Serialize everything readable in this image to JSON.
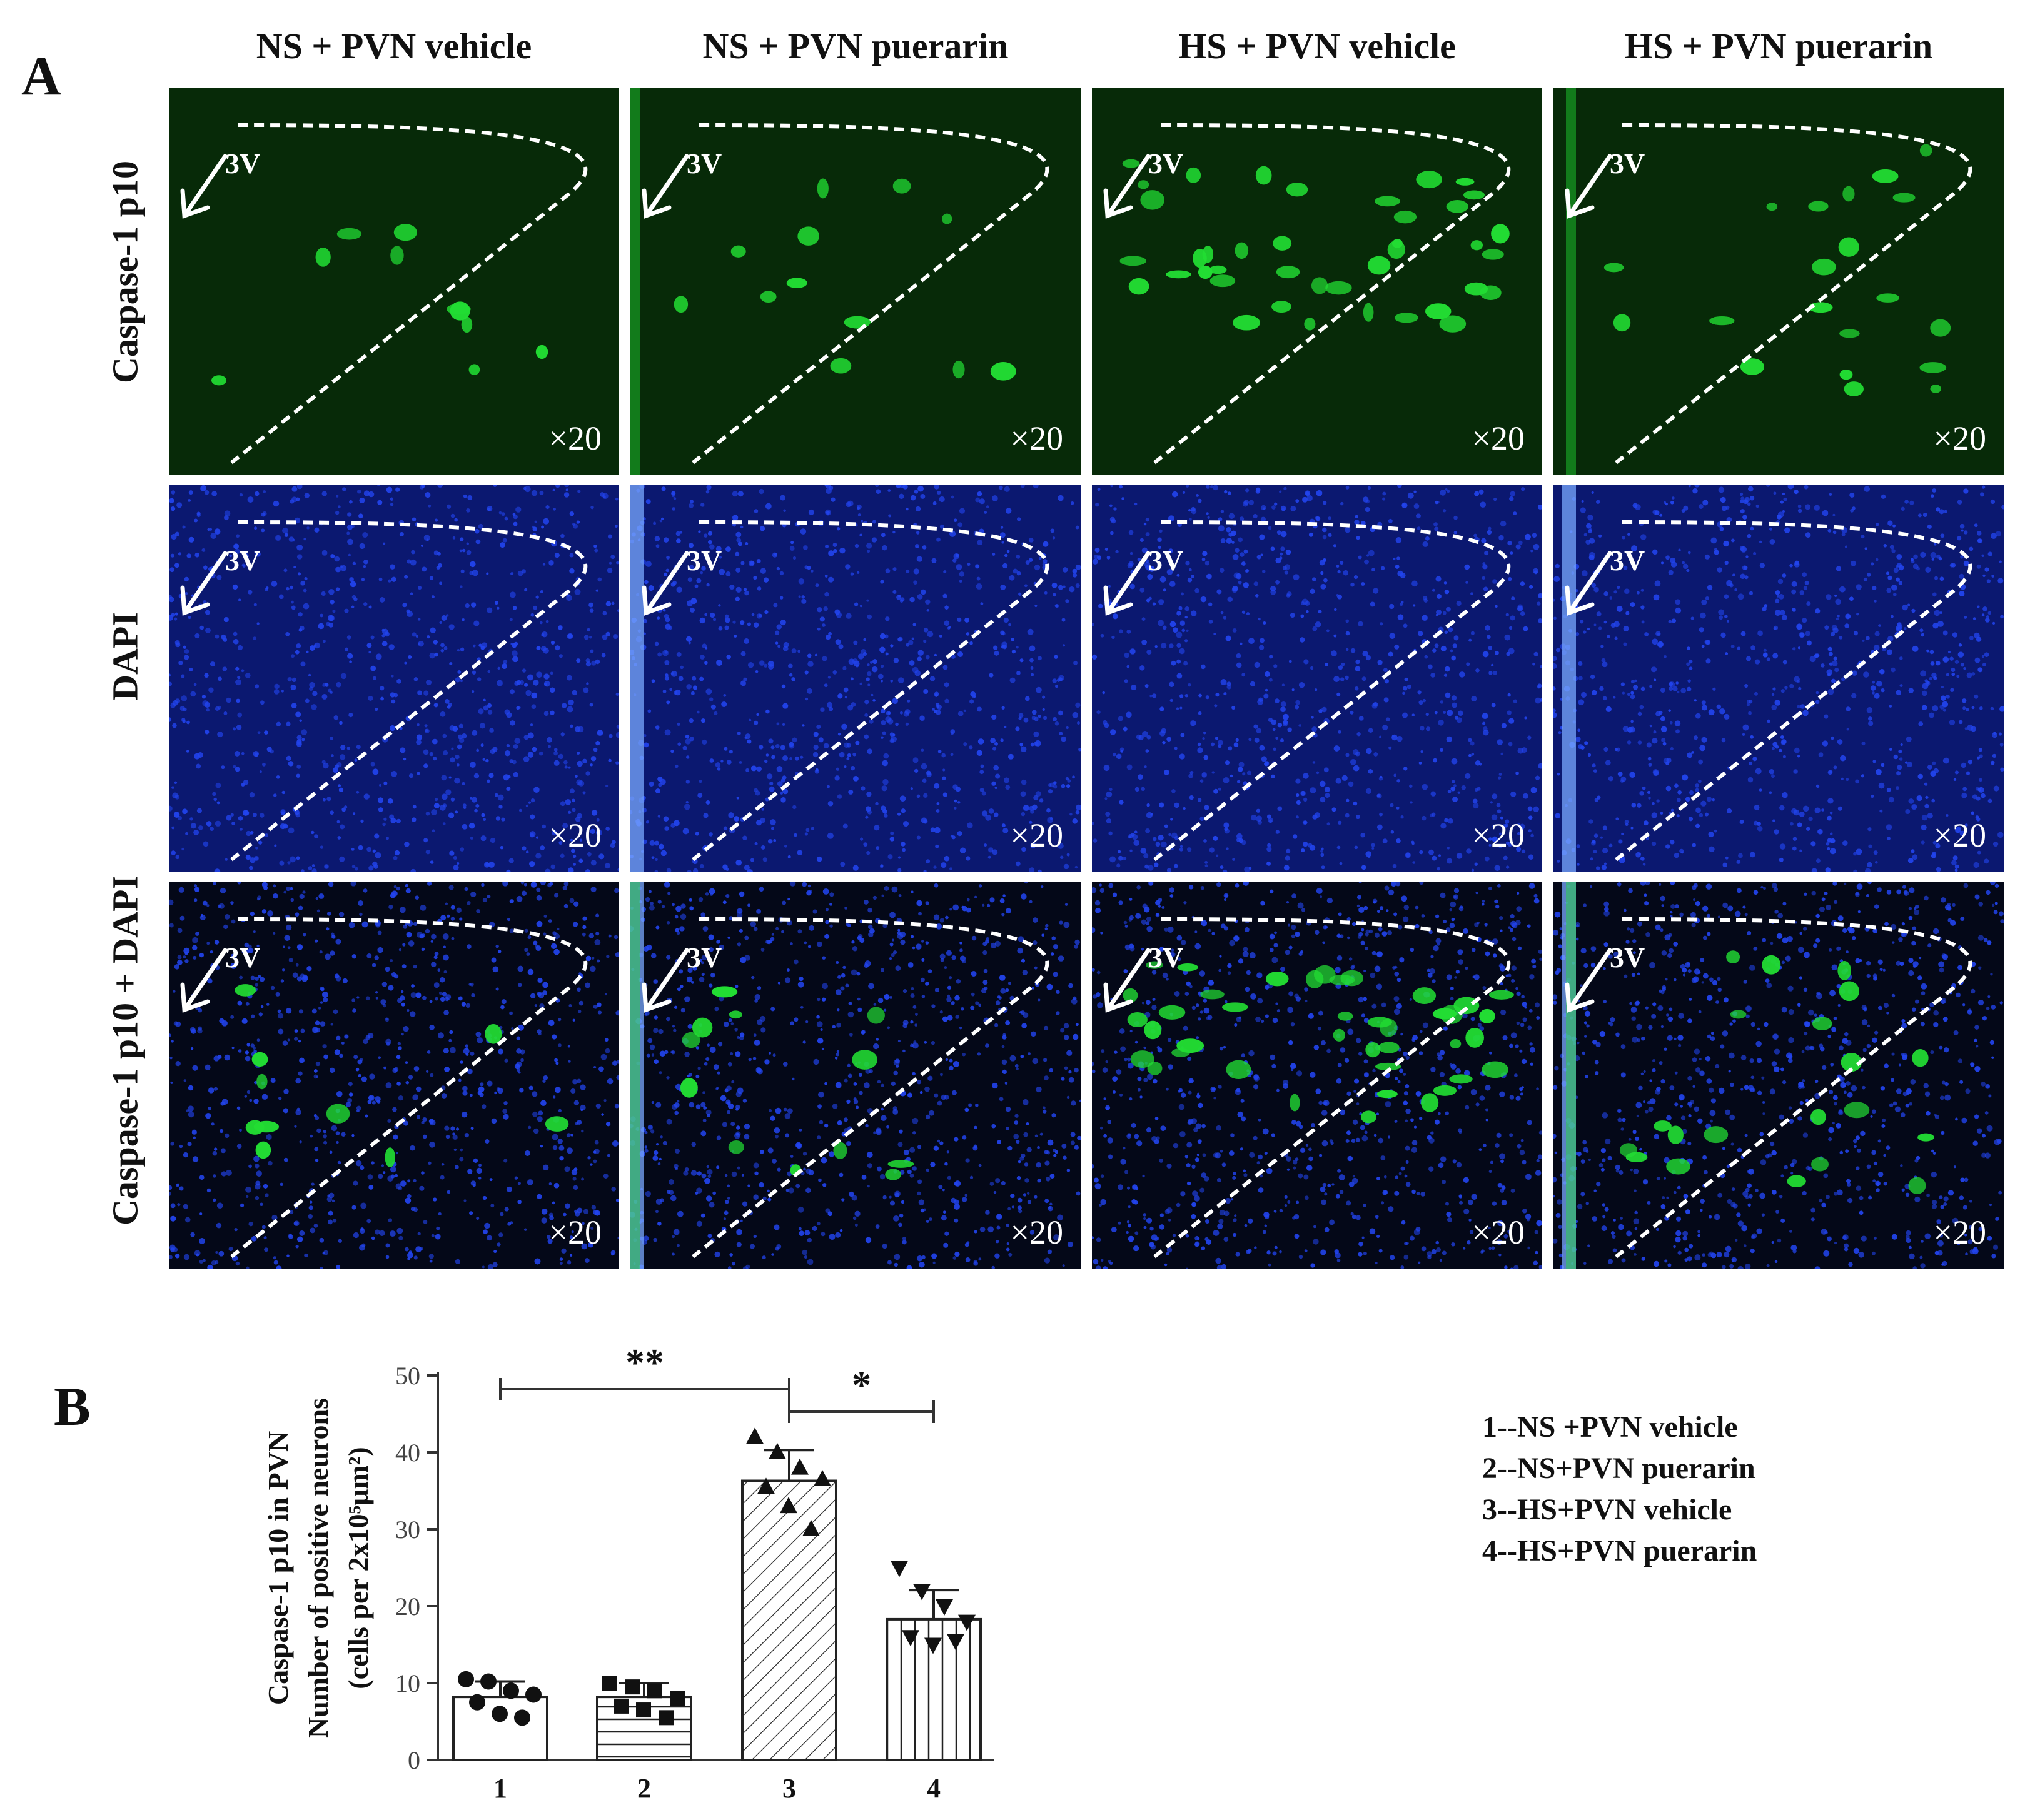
{
  "panelA": {
    "label": "A",
    "columns": [
      "NS + PVN vehicle",
      "NS + PVN puerarin",
      "HS + PVN vehicle",
      "HS + PVN puerarin"
    ],
    "rows": [
      "Caspase-1 p10",
      "DAPI",
      "Caspase-1 p10 + DAPI"
    ],
    "ventricle_label": "3V",
    "magnification": "×20",
    "colors": {
      "green_channel": "#22dd33",
      "blue_channel": "#2244ee",
      "background": "#000000"
    }
  },
  "panelB": {
    "label": "B"
  },
  "chart_data": {
    "type": "bar",
    "categories": [
      "1",
      "2",
      "3",
      "4"
    ],
    "values": [
      8.2,
      8.2,
      36.3,
      18.3
    ],
    "errors": [
      2.0,
      1.8,
      4.0,
      3.8
    ],
    "points": [
      [
        10.5,
        10.2,
        9.0,
        8.5,
        7.5,
        6.0,
        5.5
      ],
      [
        10.0,
        9.5,
        9.0,
        8.0,
        7.0,
        6.5,
        5.5
      ],
      [
        42.0,
        40.0,
        38.0,
        36.5,
        35.5,
        33.0,
        30.0
      ],
      [
        25.0,
        22.0,
        20.0,
        18.0,
        16.0,
        15.0,
        15.5
      ]
    ],
    "ylabel": "Caspase-1 p10 in PVN\nNumber of positive neurons\n(cells per 2x10⁵μm²)",
    "ylabel_lines": [
      "Caspase-1 p10 in PVN",
      "Number of positive neurons",
      "(cells per 2x10⁵μm²)"
    ],
    "yticks": [
      0,
      10,
      20,
      30,
      40,
      50
    ],
    "ylim": [
      0,
      50
    ],
    "significance": [
      {
        "from": "1",
        "to": "3",
        "label": "**"
      },
      {
        "from": "3",
        "to": "4",
        "label": "*"
      }
    ],
    "legend": [
      "1--NS +PVN vehicle",
      "2--NS+PVN puerarin",
      "3--HS+PVN vehicle",
      "4--HS+PVN puerarin"
    ],
    "legend_position": "right",
    "grid": false
  }
}
